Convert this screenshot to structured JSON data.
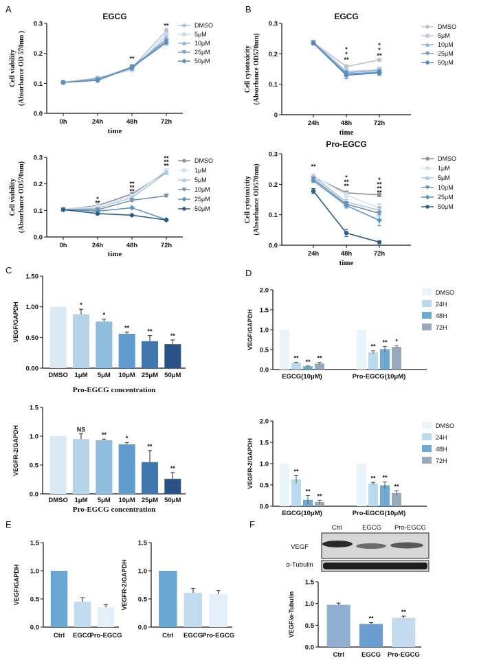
{
  "chart_data": [
    {
      "id": "A_top",
      "panel": "A",
      "type": "line",
      "title": "EGCG",
      "xlabel": "time",
      "ylabel": [
        "Cell viability",
        "(Absorbance OD 570nm )"
      ],
      "categories": [
        "0h",
        "24h",
        "48h",
        "72h"
      ],
      "ylim": [
        0,
        0.3
      ],
      "yticks": [
        0.0,
        0.1,
        0.2,
        0.3
      ],
      "ytick_labels": [
        "0.0",
        "0.1",
        "0.2",
        "0.3"
      ],
      "series": [
        {
          "name": "DMSO",
          "color": "#a9c5dd",
          "marker": "circle",
          "values": [
            0.103,
            0.115,
            0.152,
            0.275
          ],
          "err": [
            0.003,
            0.005,
            0.007,
            0.008
          ]
        },
        {
          "name": "5μM",
          "color": "#c9dcec",
          "marker": "square",
          "values": [
            0.103,
            0.118,
            0.145,
            0.262
          ],
          "err": [
            0.003,
            0.005,
            0.007,
            0.009
          ]
        },
        {
          "name": "10μM",
          "color": "#92b6d5",
          "marker": "triangle-up",
          "values": [
            0.103,
            0.117,
            0.15,
            0.25
          ],
          "err": [
            0.003,
            0.005,
            0.007,
            0.008
          ]
        },
        {
          "name": "25μM",
          "color": "#7aa3c8",
          "marker": "triangle-down",
          "values": [
            0.103,
            0.113,
            0.155,
            0.242
          ],
          "err": [
            0.003,
            0.006,
            0.008,
            0.008
          ]
        },
        {
          "name": "50μM",
          "color": "#5f8cb5",
          "marker": "diamond",
          "values": [
            0.103,
            0.11,
            0.153,
            0.236
          ],
          "err": [
            0.003,
            0.006,
            0.007,
            0.008
          ]
        }
      ],
      "annotations": [
        {
          "text": "**",
          "x": "48h",
          "y": 0.182,
          "color": "#3d6fa3"
        },
        {
          "text": "**",
          "x": "72h",
          "y": 0.292,
          "color": "#3d6fa3"
        }
      ]
    },
    {
      "id": "A_bottom",
      "panel": "",
      "type": "line",
      "title": "",
      "xlabel": "time",
      "ylabel": [
        "Cell viability",
        "(Absorbance OD570nm)"
      ],
      "categories": [
        "0h",
        "24h",
        "48h",
        "72h"
      ],
      "ylim": [
        0,
        0.3
      ],
      "yticks": [
        0.0,
        0.1,
        0.2,
        0.3
      ],
      "ytick_labels": [
        "0.0",
        "0.1",
        "0.2",
        "0.3"
      ],
      "series": [
        {
          "name": "DMSO",
          "color": "#8f8f99",
          "marker": "circle",
          "values": [
            0.103,
            0.118,
            0.162,
            0.245
          ],
          "err": [
            0.002,
            0.004,
            0.005,
            0.006
          ]
        },
        {
          "name": "1μM",
          "color": "#d2e4f1",
          "marker": "square",
          "values": [
            0.103,
            0.115,
            0.155,
            0.25
          ],
          "err": [
            0.002,
            0.004,
            0.005,
            0.008
          ]
        },
        {
          "name": "5μM",
          "color": "#a9c8e2",
          "marker": "triangle-up",
          "values": [
            0.103,
            0.108,
            0.148,
            0.242
          ],
          "err": [
            0.002,
            0.004,
            0.005,
            0.006
          ]
        },
        {
          "name": "10μM",
          "color": "#7b8fa8",
          "marker": "triangle-down",
          "values": [
            0.103,
            0.102,
            0.138,
            0.155
          ],
          "err": [
            0.002,
            0.004,
            0.004,
            0.004
          ]
        },
        {
          "name": "25μM",
          "color": "#5d95c3",
          "marker": "diamond",
          "values": [
            0.103,
            0.097,
            0.11,
            0.065
          ],
          "err": [
            0.002,
            0.003,
            0.003,
            0.003
          ]
        },
        {
          "name": "50μM",
          "color": "#2f5d8a",
          "marker": "circle",
          "values": [
            0.103,
            0.088,
            0.082,
            0.064
          ],
          "err": [
            0.002,
            0.003,
            0.003,
            0.003
          ]
        }
      ],
      "annotations": [
        {
          "text": "*",
          "x": "24h",
          "y": 0.142,
          "color": "#5a86b5"
        },
        {
          "text": "**",
          "x": "24h",
          "y": 0.128,
          "color": "#3d6fa3"
        },
        {
          "text": "**",
          "x": "48h",
          "y": 0.2,
          "color": "#7ea8cf"
        },
        {
          "text": "**",
          "x": "48h",
          "y": 0.186,
          "color": "#5a86b5"
        },
        {
          "text": "**",
          "x": "48h",
          "y": 0.172,
          "color": "#3d6fa3"
        },
        {
          "text": "**",
          "x": "72h",
          "y": 0.296,
          "color": "#7ea8cf"
        },
        {
          "text": "**",
          "x": "72h",
          "y": 0.282,
          "color": "#5a86b5"
        },
        {
          "text": "**",
          "x": "72h",
          "y": 0.268,
          "color": "#3d6fa3"
        }
      ]
    },
    {
      "id": "B_top",
      "panel": "B",
      "type": "line",
      "title": "EGCG",
      "xlabel": "time",
      "ylabel": [
        "Cell cytotoxicity",
        "(Absorbance OD570nm)"
      ],
      "categories": [
        "24h",
        "48h",
        "72h"
      ],
      "ylim": [
        0,
        0.3
      ],
      "yticks": [
        0.0,
        0.1,
        0.2,
        0.3
      ],
      "ytick_labels": [
        "0",
        "0.1",
        "0.2",
        "0.3"
      ],
      "series": [
        {
          "name": "DMSO",
          "color": "#bfbfc6",
          "marker": "circle",
          "values": [
            0.237,
            0.158,
            0.18
          ],
          "err": [
            0.006,
            0.006,
            0.004
          ]
        },
        {
          "name": "5μM",
          "color": "#b7d0e8",
          "marker": "square",
          "values": [
            0.239,
            0.142,
            0.148
          ],
          "err": [
            0.006,
            0.01,
            0.008
          ]
        },
        {
          "name": "10μM",
          "color": "#92b6d5",
          "marker": "triangle-up",
          "values": [
            0.238,
            0.138,
            0.145
          ],
          "err": [
            0.006,
            0.01,
            0.008
          ]
        },
        {
          "name": "25μM",
          "color": "#6f9cc8",
          "marker": "triangle-down",
          "values": [
            0.236,
            0.134,
            0.14
          ],
          "err": [
            0.006,
            0.01,
            0.008
          ]
        },
        {
          "name": "50μM",
          "color": "#5588bb",
          "marker": "diamond",
          "values": [
            0.235,
            0.13,
            0.137
          ],
          "err": [
            0.006,
            0.012,
            0.008
          ]
        }
      ],
      "annotations": [
        {
          "text": "*",
          "x": "48h",
          "y": 0.214,
          "color": "#6f9cc8"
        },
        {
          "text": "*",
          "x": "48h",
          "y": 0.198,
          "color": "#6f9cc8"
        },
        {
          "text": "**",
          "x": "48h",
          "y": 0.18,
          "color": "#5588bb"
        },
        {
          "text": "*",
          "x": "72h",
          "y": 0.228,
          "color": "#6f9cc8"
        },
        {
          "text": "*",
          "x": "72h",
          "y": 0.212,
          "color": "#6f9cc8"
        },
        {
          "text": "**",
          "x": "72h",
          "y": 0.194,
          "color": "#5588bb"
        }
      ]
    },
    {
      "id": "B_bottom",
      "panel": "",
      "type": "line",
      "title": "Pro-EGCG",
      "xlabel": "time",
      "ylabel": [
        "Cell cytotoxicity",
        "(Absorbance OD570nm)"
      ],
      "categories": [
        "24h",
        "48h",
        "72h"
      ],
      "ylim": [
        0,
        0.3
      ],
      "yticks": [
        0.0,
        0.1,
        0.2,
        0.3
      ],
      "ytick_labels": [
        "0.0",
        "0.1",
        "0.2",
        "0.3"
      ],
      "series": [
        {
          "name": "DMSO",
          "color": "#8f8f99",
          "marker": "circle",
          "values": [
            0.225,
            0.172,
            0.165
          ],
          "err": [
            0.006,
            0.006,
            0.006
          ]
        },
        {
          "name": "1μM",
          "color": "#d2e4f1",
          "marker": "square",
          "values": [
            0.228,
            0.165,
            0.122
          ],
          "err": [
            0.006,
            0.008,
            0.015
          ]
        },
        {
          "name": "5μM",
          "color": "#a9c8e2",
          "marker": "triangle-up",
          "values": [
            0.226,
            0.142,
            0.115
          ],
          "err": [
            0.006,
            0.008,
            0.02
          ]
        },
        {
          "name": "10μM",
          "color": "#7b8fa8",
          "marker": "triangle-down",
          "values": [
            0.218,
            0.135,
            0.105
          ],
          "err": [
            0.006,
            0.008,
            0.02
          ]
        },
        {
          "name": "25μM",
          "color": "#5d95c3",
          "marker": "diamond",
          "values": [
            0.212,
            0.13,
            0.082
          ],
          "err": [
            0.006,
            0.008,
            0.018
          ]
        },
        {
          "name": "50μM",
          "color": "#2f5d8a",
          "marker": "circle",
          "values": [
            0.178,
            0.04,
            0.01
          ],
          "err": [
            0.008,
            0.012,
            0.003
          ]
        }
      ],
      "annotations": [
        {
          "text": "**",
          "x": "24h",
          "y": 0.258,
          "color": "#3d6fa3"
        },
        {
          "text": "*",
          "x": "48h",
          "y": 0.222,
          "color": "#7ea8cf"
        },
        {
          "text": "**",
          "x": "48h",
          "y": 0.208,
          "color": "#5a86b5"
        },
        {
          "text": "**",
          "x": "48h",
          "y": 0.194,
          "color": "#3d6fa3"
        },
        {
          "text": "*",
          "x": "72h",
          "y": 0.214,
          "color": "#7ea8cf"
        },
        {
          "text": "**",
          "x": "72h",
          "y": 0.2,
          "color": "#7ea8cf"
        },
        {
          "text": "**",
          "x": "72h",
          "y": 0.186,
          "color": "#5a86b5"
        },
        {
          "text": "**",
          "x": "72h",
          "y": 0.172,
          "color": "#3d6fa3"
        }
      ]
    },
    {
      "id": "C_top",
      "panel": "C",
      "type": "bar",
      "title": "",
      "ylabel": "VEGF/GAPDH",
      "xlabel": "",
      "caption": "Pro-EGCG concentration",
      "categories": [
        "DMSO",
        "1μM",
        "5μM",
        "10μM",
        "25μM",
        "50μM"
      ],
      "values": [
        1.0,
        0.88,
        0.76,
        0.56,
        0.44,
        0.39
      ],
      "err": [
        0.0,
        0.08,
        0.04,
        0.03,
        0.09,
        0.07
      ],
      "colors": [
        "#dbe9f5",
        "#b5d4ea",
        "#8fbddf",
        "#5f9bcc",
        "#3f77ae",
        "#2b5287"
      ],
      "sig": [
        "",
        "*",
        "*",
        "**",
        "**",
        "**"
      ],
      "ylim": [
        0,
        1.5
      ],
      "yticks": [
        0.0,
        0.5,
        1.0,
        1.5
      ],
      "ytick_labels": [
        "0.00",
        "0.50",
        "1.00",
        "1.50"
      ]
    },
    {
      "id": "C_bottom",
      "panel": "",
      "type": "bar",
      "title": "",
      "ylabel": "VEGFR-2/GAPDH",
      "xlabel": "Pro-EGCG concentration",
      "categories": [
        "DMSO",
        "1μM",
        "5μM",
        "10μM",
        "25μM",
        "50μM"
      ],
      "values": [
        1.0,
        0.95,
        0.93,
        0.86,
        0.55,
        0.26
      ],
      "err": [
        0.0,
        0.09,
        0.02,
        0.03,
        0.2,
        0.11
      ],
      "colors": [
        "#dbe9f5",
        "#b5d4ea",
        "#8fbddf",
        "#5f9bcc",
        "#3f77ae",
        "#2b5287"
      ],
      "sig": [
        "",
        "NS",
        "**",
        "*",
        "**",
        "**"
      ],
      "ylim": [
        0,
        1.5
      ],
      "yticks": [
        0.0,
        0.5,
        1.0,
        1.5
      ],
      "ytick_labels": [
        "0.0",
        "0.5",
        "1.0",
        "1.5"
      ]
    },
    {
      "id": "D_top",
      "panel": "D",
      "type": "bar",
      "ylabel": "VEGF/GAPDH",
      "groups": [
        "EGCG(10μM)",
        "Pro-EGCG(10μM)"
      ],
      "legend": [
        "DMSO",
        "24H",
        "48H",
        "72H"
      ],
      "colors": [
        "#e8f3fa",
        "#b8d9ee",
        "#6ea9d3",
        "#98a9bd"
      ],
      "values": [
        [
          1.0,
          0.17,
          0.08,
          0.15
        ],
        [
          1.0,
          0.43,
          0.51,
          0.57
        ]
      ],
      "err": [
        [
          0.0,
          0.01,
          0.01,
          0.03
        ],
        [
          0.0,
          0.04,
          0.07,
          0.03
        ]
      ],
      "sig": [
        [
          "",
          "**",
          "**",
          "**"
        ],
        [
          "",
          "**",
          "**",
          "*"
        ]
      ],
      "ylim": [
        0,
        2.0
      ],
      "yticks": [
        0.0,
        0.5,
        1.0,
        1.5,
        2.0
      ],
      "ytick_labels": [
        "0.0",
        "0.5",
        "1.0",
        "1.5",
        "2.0"
      ]
    },
    {
      "id": "D_bottom",
      "panel": "",
      "type": "bar",
      "ylabel": "VEGFR-2/GAPDH",
      "groups": [
        "EGCG(10μM)",
        "Pro-EGCG(10μM)"
      ],
      "legend": [
        "DMSO",
        "24H",
        "48H",
        "72H"
      ],
      "colors": [
        "#e8f3fa",
        "#b8d9ee",
        "#6ea9d3",
        "#98a9bd"
      ],
      "values": [
        [
          1.0,
          0.63,
          0.15,
          0.1
        ],
        [
          1.0,
          0.53,
          0.49,
          0.31
        ]
      ],
      "err": [
        [
          0.0,
          0.09,
          0.1,
          0.04
        ],
        [
          0.0,
          0.03,
          0.08,
          0.05
        ]
      ],
      "sig": [
        [
          "",
          "**",
          "**",
          "**"
        ],
        [
          "",
          "**",
          "**",
          "**"
        ]
      ],
      "ylim": [
        0,
        2.0
      ],
      "yticks": [
        0.0,
        0.5,
        1.0,
        1.5,
        2.0
      ],
      "ytick_labels": [
        "0.0",
        "0.5",
        "1.0",
        "1.5",
        "2.0"
      ]
    },
    {
      "id": "E_left",
      "panel": "E",
      "type": "bar",
      "ylabel": "VEGF/GAPDH",
      "categories": [
        "Ctrl",
        "EGCG",
        "Pro-EGCG"
      ],
      "values": [
        1.0,
        0.45,
        0.35
      ],
      "err": [
        0.0,
        0.07,
        0.05
      ],
      "colors": [
        "#6aa6d4",
        "#c2dbef",
        "#e4f0f9"
      ],
      "ylim": [
        0,
        1.5
      ],
      "yticks": [
        0.0,
        0.5,
        1.0,
        1.5
      ],
      "ytick_labels": [
        "0.0",
        "0.5",
        "1.0",
        "1.5"
      ]
    },
    {
      "id": "E_right",
      "panel": "",
      "type": "bar",
      "ylabel": "VEGFR-2/GAPDH",
      "categories": [
        "Ctrl",
        "EGCG",
        "Pro-EGCG"
      ],
      "values": [
        1.0,
        0.61,
        0.59
      ],
      "err": [
        0.0,
        0.08,
        0.06
      ],
      "colors": [
        "#6aa6d4",
        "#c2dbef",
        "#e4f0f9"
      ],
      "ylim": [
        0,
        1.5
      ],
      "yticks": [
        0.0,
        0.5,
        1.0,
        1.5
      ],
      "ytick_labels": [
        "0.0",
        "0.5",
        "1.0",
        "1.5"
      ]
    },
    {
      "id": "F_bar",
      "panel": "F",
      "type": "bar",
      "ylabel": "VEGF/α-Tubulin",
      "categories": [
        "Ctrl",
        "EGCG",
        "Pro-EGCG"
      ],
      "values": [
        0.97,
        0.53,
        0.67
      ],
      "err": [
        0.04,
        0.03,
        0.04
      ],
      "colors": [
        "#8fb0d1",
        "#6a9ed0",
        "#c4dbef"
      ],
      "sig": [
        "",
        "**",
        "**"
      ],
      "ylim": [
        0,
        1.5
      ],
      "yticks": [
        0.0,
        0.5,
        1.0,
        1.5
      ],
      "ytick_labels": [
        "0.0",
        "0.5",
        "1.0",
        "1.5"
      ]
    }
  ],
  "blot": {
    "lanes": [
      "Ctrl",
      "EGCG",
      "Pro-EGCG"
    ],
    "rows": [
      "VEGF",
      "α-Tubulin"
    ]
  }
}
